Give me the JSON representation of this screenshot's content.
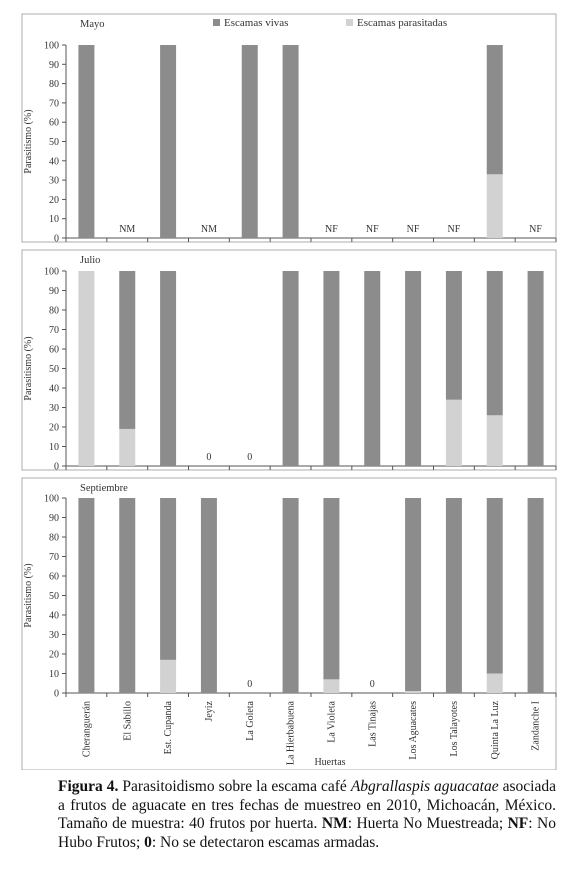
{
  "figure": {
    "legend": {
      "live": "Escamas vivas",
      "parasitized": "Escamas parasitadas"
    },
    "colors": {
      "live": "#8c8c8c",
      "parasitized": "#d2d2d2",
      "axis": "#555555",
      "frame": "#9a9a9a"
    },
    "ylabel": "Parasitismo (%)",
    "xlabel": "Huertas",
    "yticks": [
      0,
      10,
      20,
      30,
      40,
      50,
      60,
      70,
      80,
      90,
      100
    ]
  },
  "chart_data": [
    {
      "type": "bar",
      "stacked": true,
      "title": "Mayo",
      "categories": [
        "Cheranguerán",
        "El Sabillo",
        "Est. Cupanda",
        "Jeyiz",
        "La Goleta",
        "La Hierbabuena",
        "La Violeta",
        "Las Tinajas",
        "Los Aguacates",
        "Los Talayotes",
        "Quinta La Luz",
        "Zandanche I"
      ],
      "ylim": [
        0,
        100
      ],
      "series": [
        {
          "name": "Escamas parasitadas",
          "values": [
            0,
            null,
            0,
            null,
            0,
            0,
            null,
            null,
            null,
            null,
            33,
            null
          ]
        },
        {
          "name": "Escamas vivas",
          "values": [
            100,
            null,
            100,
            null,
            100,
            100,
            null,
            null,
            null,
            null,
            67,
            null
          ]
        }
      ],
      "annotations": [
        "",
        "NM",
        "",
        "NM",
        "",
        "",
        "NF",
        "NF",
        "NF",
        "NF",
        "",
        "NF"
      ]
    },
    {
      "type": "bar",
      "stacked": true,
      "title": "Julio",
      "categories": [
        "Cheranguerán",
        "El Sabillo",
        "Est. Cupanda",
        "Jeyiz",
        "La Goleta",
        "La Hierbabuena",
        "La Violeta",
        "Las Tinajas",
        "Los Aguacates",
        "Los Talayotes",
        "Quinta La Luz",
        "Zandanche I"
      ],
      "ylim": [
        0,
        100
      ],
      "series": [
        {
          "name": "Escamas parasitadas",
          "values": [
            100,
            19,
            0,
            null,
            null,
            0,
            0,
            0,
            0,
            34,
            26,
            0
          ]
        },
        {
          "name": "Escamas vivas",
          "values": [
            0,
            81,
            100,
            null,
            null,
            100,
            100,
            100,
            100,
            66,
            74,
            100
          ]
        }
      ],
      "annotations": [
        "",
        "",
        "",
        "0",
        "0",
        "",
        "",
        "",
        "",
        "",
        "",
        ""
      ]
    },
    {
      "type": "bar",
      "stacked": true,
      "title": "Septiembre",
      "categories": [
        "Cheranguerán",
        "El Sabillo",
        "Est. Cupanda",
        "Jeyiz",
        "La Goleta",
        "La Hierbabuena",
        "La Violeta",
        "Las Tinajas",
        "Los Aguacates",
        "Los Talayotes",
        "Quinta La Luz",
        "Zandanche I"
      ],
      "ylim": [
        0,
        100
      ],
      "series": [
        {
          "name": "Escamas parasitadas",
          "values": [
            0,
            0,
            17,
            0,
            null,
            0,
            7,
            null,
            1,
            0,
            10,
            0
          ]
        },
        {
          "name": "Escamas vivas",
          "values": [
            100,
            100,
            83,
            100,
            null,
            100,
            93,
            null,
            99,
            100,
            90,
            100
          ]
        }
      ],
      "annotations": [
        "",
        "",
        "",
        "",
        "0",
        "",
        "",
        "0",
        "",
        "",
        "",
        ""
      ]
    }
  ],
  "caption": {
    "label": "Figura 4.",
    "text_before_species": " Parasitoidismo sobre la escama café ",
    "species": "Abgrallaspis aguacatae",
    "text_1": " asociada a frutos de aguacate en tres fechas de muestreo en 2010, Michoacán, México. Tamaño de muestra: 40 frutos por huerta. ",
    "nm_label": "NM",
    "nm_text": ": Huerta No Muestreada; ",
    "nf_label": "NF",
    "nf_text": ": No Hubo Frutos; ",
    "zero_label": "0",
    "zero_text": ": No se detectaron escamas armadas."
  }
}
